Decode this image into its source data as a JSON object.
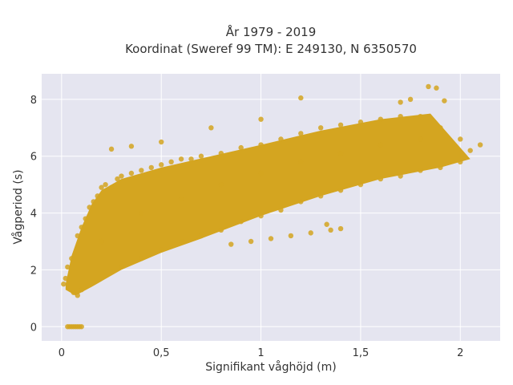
{
  "chart_data": {
    "type": "scatter",
    "title_line1": "År 1979 - 2019",
    "title_line2": "Koordinat (Sweref 99 TM): E 249130, N 6350570",
    "xlabel": "Signifikant våghöjd (m)",
    "ylabel": "Vågperiod (s)",
    "xlim": [
      -0.1,
      2.2
    ],
    "ylim": [
      -0.5,
      8.9
    ],
    "x_ticks": [
      {
        "value": 0,
        "label": "0"
      },
      {
        "value": 0.5,
        "label": "0,5"
      },
      {
        "value": 1,
        "label": "1"
      },
      {
        "value": 1.5,
        "label": "1,5"
      },
      {
        "value": 2,
        "label": "2"
      }
    ],
    "y_ticks": [
      {
        "value": 0,
        "label": "0"
      },
      {
        "value": 2,
        "label": "2"
      },
      {
        "value": 4,
        "label": "4"
      },
      {
        "value": 6,
        "label": "6"
      },
      {
        "value": 8,
        "label": "8"
      }
    ],
    "grid": true,
    "marker_color": "#D4A520",
    "plot_background": "#E5E5F0",
    "band_upper_edge": [
      [
        0.02,
        1.5
      ],
      [
        0.05,
        2.5
      ],
      [
        0.1,
        3.5
      ],
      [
        0.15,
        4.3
      ],
      [
        0.2,
        4.8
      ],
      [
        0.3,
        5.2
      ],
      [
        0.5,
        5.6
      ],
      [
        0.75,
        6.0
      ],
      [
        1.0,
        6.4
      ],
      [
        1.3,
        6.9
      ],
      [
        1.6,
        7.3
      ],
      [
        1.85,
        7.5
      ]
    ],
    "band_lower_edge": [
      [
        0.02,
        1.3
      ],
      [
        0.07,
        1.1
      ],
      [
        0.15,
        1.4
      ],
      [
        0.3,
        2.0
      ],
      [
        0.5,
        2.6
      ],
      [
        0.7,
        3.1
      ],
      [
        1.0,
        3.9
      ],
      [
        1.3,
        4.6
      ],
      [
        1.6,
        5.2
      ],
      [
        1.9,
        5.6
      ],
      [
        2.05,
        5.9
      ]
    ],
    "points": [
      [
        0.03,
        0.0
      ],
      [
        0.04,
        0.0
      ],
      [
        0.05,
        0.0
      ],
      [
        0.06,
        0.0
      ],
      [
        0.07,
        0.0
      ],
      [
        0.08,
        0.0
      ],
      [
        0.09,
        0.0
      ],
      [
        0.1,
        0.0
      ],
      [
        0.01,
        1.5
      ],
      [
        0.02,
        1.7
      ],
      [
        0.03,
        2.1
      ],
      [
        0.05,
        2.4
      ],
      [
        0.06,
        1.2
      ],
      [
        0.08,
        1.1
      ],
      [
        0.1,
        1.3
      ],
      [
        0.08,
        3.2
      ],
      [
        0.1,
        3.5
      ],
      [
        0.12,
        3.8
      ],
      [
        0.14,
        4.2
      ],
      [
        0.16,
        4.4
      ],
      [
        0.18,
        4.6
      ],
      [
        0.2,
        4.9
      ],
      [
        0.22,
        5.0
      ],
      [
        0.25,
        4.9
      ],
      [
        0.28,
        5.2
      ],
      [
        0.3,
        5.3
      ],
      [
        0.35,
        5.4
      ],
      [
        0.4,
        5.5
      ],
      [
        0.45,
        5.6
      ],
      [
        0.5,
        5.7
      ],
      [
        0.55,
        5.8
      ],
      [
        0.6,
        5.9
      ],
      [
        0.65,
        5.9
      ],
      [
        0.7,
        6.0
      ],
      [
        0.8,
        6.1
      ],
      [
        0.9,
        6.3
      ],
      [
        1.0,
        6.4
      ],
      [
        1.1,
        6.6
      ],
      [
        1.2,
        6.8
      ],
      [
        1.3,
        7.0
      ],
      [
        1.4,
        7.1
      ],
      [
        1.5,
        7.2
      ],
      [
        1.6,
        7.3
      ],
      [
        1.7,
        7.4
      ],
      [
        1.8,
        7.4
      ],
      [
        1.9,
        7.0
      ],
      [
        2.0,
        6.6
      ],
      [
        2.1,
        6.4
      ],
      [
        2.05,
        6.2
      ],
      [
        1.84,
        8.45
      ],
      [
        1.88,
        8.4
      ],
      [
        1.92,
        7.95
      ],
      [
        1.2,
        8.05
      ],
      [
        0.25,
        6.25
      ],
      [
        0.35,
        6.35
      ],
      [
        0.5,
        6.5
      ],
      [
        0.75,
        7.0
      ],
      [
        1.0,
        7.3
      ],
      [
        1.7,
        7.9
      ],
      [
        1.75,
        8.0
      ],
      [
        0.3,
        2.1
      ],
      [
        0.4,
        2.4
      ],
      [
        0.5,
        2.7
      ],
      [
        0.6,
        3.0
      ],
      [
        0.7,
        3.2
      ],
      [
        0.8,
        3.4
      ],
      [
        0.9,
        3.7
      ],
      [
        1.0,
        3.9
      ],
      [
        1.1,
        4.1
      ],
      [
        1.2,
        4.4
      ],
      [
        1.3,
        4.6
      ],
      [
        1.4,
        4.8
      ],
      [
        1.5,
        5.0
      ],
      [
        1.6,
        5.2
      ],
      [
        1.7,
        5.3
      ],
      [
        1.8,
        5.5
      ],
      [
        1.9,
        5.6
      ],
      [
        2.0,
        5.8
      ],
      [
        0.85,
        2.9
      ],
      [
        0.95,
        3.0
      ],
      [
        1.05,
        3.1
      ],
      [
        1.15,
        3.2
      ],
      [
        1.25,
        3.3
      ],
      [
        1.35,
        3.4
      ],
      [
        1.4,
        3.45
      ],
      [
        1.33,
        3.6
      ],
      [
        0.2,
        3.0
      ],
      [
        0.4,
        4.0
      ],
      [
        0.6,
        4.5
      ],
      [
        0.8,
        5.0
      ],
      [
        1.0,
        5.4
      ],
      [
        1.2,
        5.8
      ],
      [
        1.4,
        6.1
      ],
      [
        1.6,
        6.4
      ],
      [
        1.8,
        6.6
      ]
    ]
  }
}
